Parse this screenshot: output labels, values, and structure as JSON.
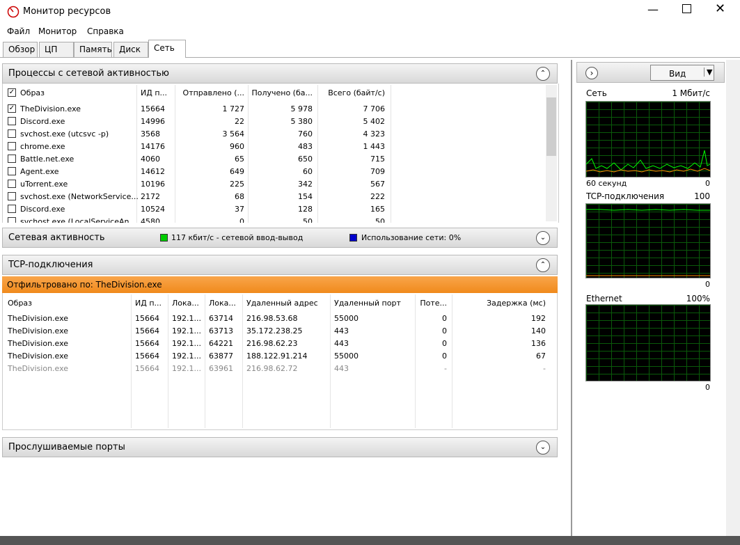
{
  "window": {
    "title": "Монитор ресурсов"
  },
  "menu": [
    "Файл",
    "Монитор",
    "Справка"
  ],
  "tabs": [
    "Обзор",
    "ЦП",
    "Память",
    "Диск",
    "Сеть"
  ],
  "processes": {
    "title": "Процессы с сетевой активностью",
    "columns": [
      "Образ",
      "ИД п...",
      "Отправлено (...",
      "Получено (ба...",
      "Всего (байт/с)"
    ],
    "rows": [
      {
        "checked": true,
        "cells": [
          "TheDivision.exe",
          "15664",
          "1 727",
          "5 978",
          "7 706"
        ]
      },
      {
        "checked": false,
        "cells": [
          "Discord.exe",
          "14996",
          "22",
          "5 380",
          "5 402"
        ]
      },
      {
        "checked": false,
        "cells": [
          "svchost.exe (utcsvc -p)",
          "3568",
          "3 564",
          "760",
          "4 323"
        ]
      },
      {
        "checked": false,
        "cells": [
          "chrome.exe",
          "14176",
          "960",
          "483",
          "1 443"
        ]
      },
      {
        "checked": false,
        "cells": [
          "Battle.net.exe",
          "4060",
          "65",
          "650",
          "715"
        ]
      },
      {
        "checked": false,
        "cells": [
          "Agent.exe",
          "14612",
          "649",
          "60",
          "709"
        ]
      },
      {
        "checked": false,
        "cells": [
          "uTorrent.exe",
          "10196",
          "225",
          "342",
          "567"
        ]
      },
      {
        "checked": false,
        "cells": [
          "svchost.exe (NetworkService...",
          "2172",
          "68",
          "154",
          "222"
        ]
      },
      {
        "checked": false,
        "cells": [
          "Discord.exe",
          "10524",
          "37",
          "128",
          "165"
        ]
      },
      {
        "checked": false,
        "cells": [
          "svchost.exe (LocalServiceAn...",
          "4580",
          "0",
          "50",
          "50"
        ]
      }
    ]
  },
  "activity": {
    "title": "Сетевая активность",
    "io": "117 кбит/с - сетевой ввод-вывод",
    "usage": "Использование сети: 0%"
  },
  "tcp": {
    "title": "TCP-подключения",
    "filter": "Отфильтровано по: TheDivision.exe",
    "columns": [
      "Образ",
      "ИД п...",
      "Лока...",
      "Лока...",
      "Удаленный адрес",
      "Удаленный порт",
      "Поте...",
      "Задержка (мс)"
    ],
    "rows": [
      {
        "active": true,
        "cells": [
          "TheDivision.exe",
          "15664",
          "192.1...",
          "63714",
          "216.98.53.68",
          "55000",
          "0",
          "192"
        ]
      },
      {
        "active": true,
        "cells": [
          "TheDivision.exe",
          "15664",
          "192.1...",
          "63713",
          "35.172.238.25",
          "443",
          "0",
          "140"
        ]
      },
      {
        "active": true,
        "cells": [
          "TheDivision.exe",
          "15664",
          "192.1...",
          "64221",
          "216.98.62.23",
          "443",
          "0",
          "136"
        ]
      },
      {
        "active": true,
        "cells": [
          "TheDivision.exe",
          "15664",
          "192.1...",
          "63877",
          "188.122.91.214",
          "55000",
          "0",
          "67"
        ]
      },
      {
        "active": false,
        "cells": [
          "TheDivision.exe",
          "15664",
          "192.1...",
          "63961",
          "216.98.62.72",
          "443",
          "-",
          "-"
        ]
      }
    ]
  },
  "ports": {
    "title": "Прослушиваемые порты"
  },
  "side": {
    "view": "Вид",
    "graphs": [
      {
        "title": "Сеть",
        "max": "1 Мбит/с",
        "time": "60 секунд",
        "min": "0"
      },
      {
        "title": "TCP-подключения",
        "max": "100",
        "min": "0"
      },
      {
        "title": "Ethernet",
        "max": "100%",
        "min": "0"
      }
    ]
  }
}
